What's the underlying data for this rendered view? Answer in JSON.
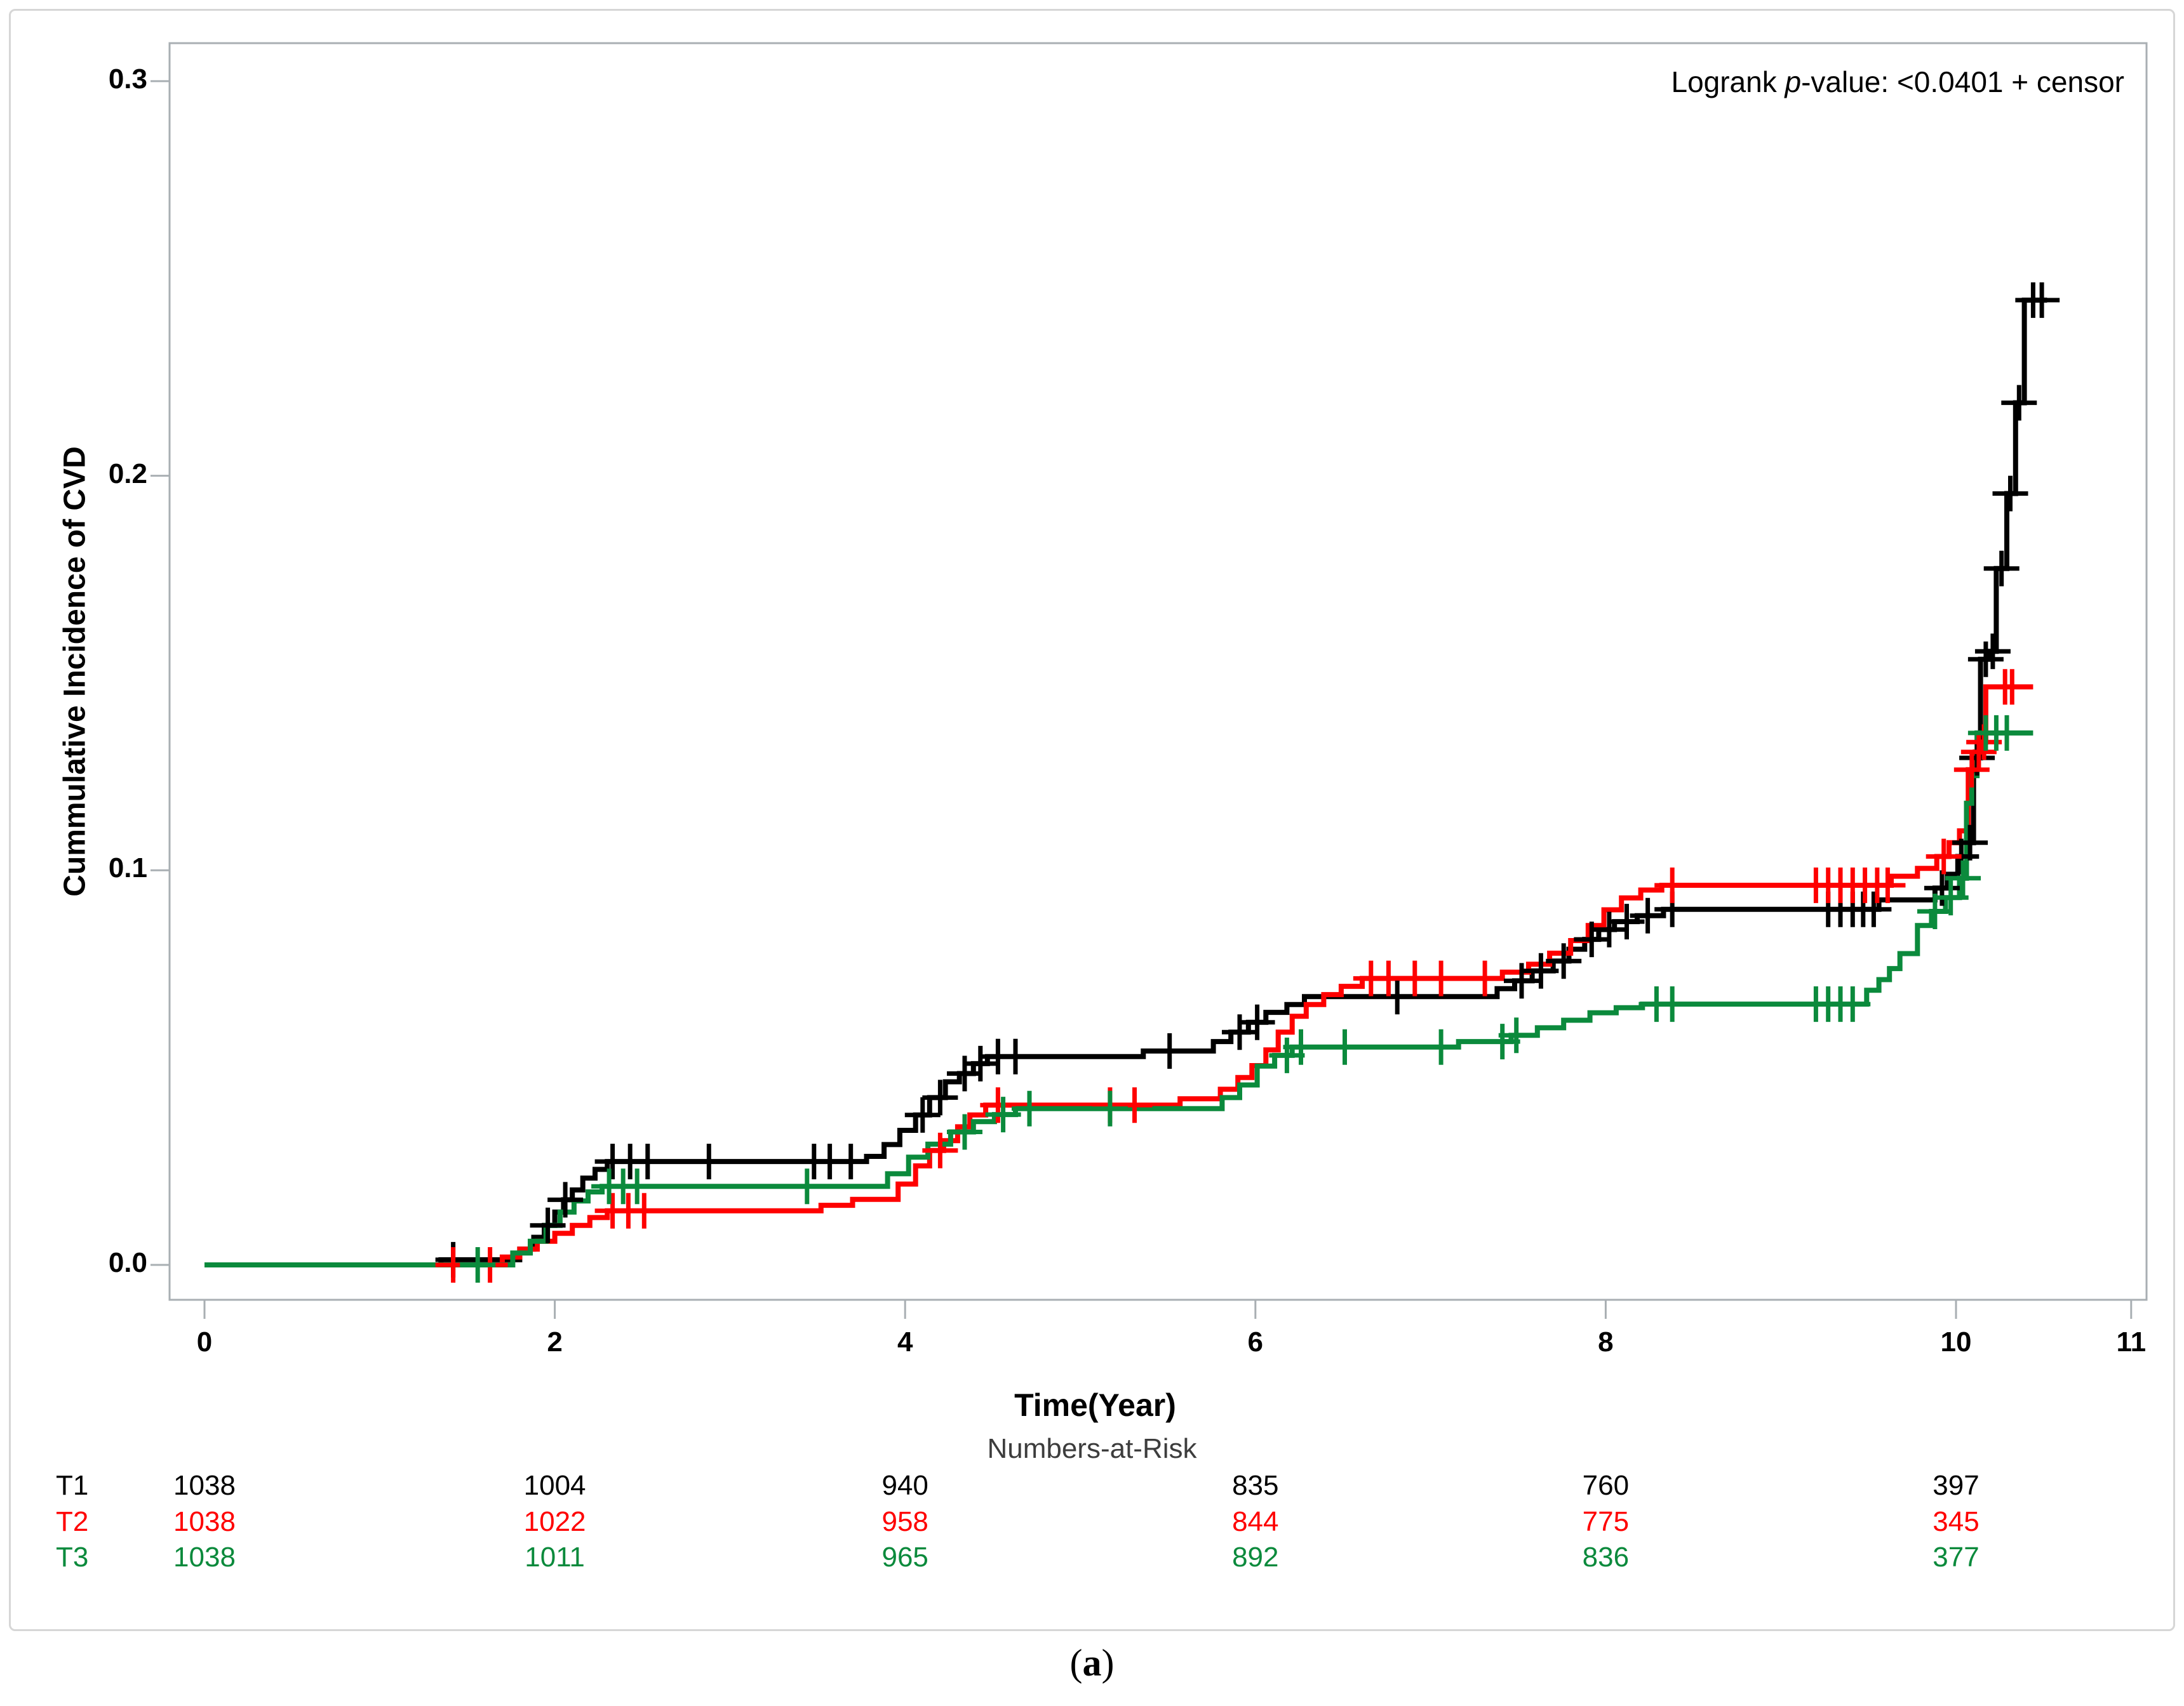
{
  "chart_data": {
    "type": "line",
    "subtype": "step-cumulative-incidence",
    "title": "",
    "annotation": {
      "prefix": "Logrank ",
      "italic": "p",
      "suffix": "-value: <0.0401 + censor"
    },
    "xlabel": "Time(Year)",
    "ylabel": "Cummulative Incidence of CVD",
    "xlim": [
      0,
      11.1
    ],
    "ylim": [
      0,
      0.305
    ],
    "grid": false,
    "legend_position": "none",
    "x_ticks": [
      {
        "value": 0,
        "label": "0"
      },
      {
        "value": 2,
        "label": "2"
      },
      {
        "value": 4,
        "label": "4"
      },
      {
        "value": 6,
        "label": "6"
      },
      {
        "value": 8,
        "label": "8"
      },
      {
        "value": 10,
        "label": "10"
      },
      {
        "value": 11,
        "label": "11"
      }
    ],
    "y_ticks": [
      {
        "value": 0.0,
        "label": "0.0"
      },
      {
        "value": 0.1,
        "label": "0.1"
      },
      {
        "value": 0.2,
        "label": "0.2"
      },
      {
        "value": 0.3,
        "label": "0.3"
      }
    ],
    "series": [
      {
        "name": "T1",
        "color": "#000000",
        "end": 10.52,
        "steps": [
          [
            0,
            0
          ],
          [
            1.35,
            0.0013
          ],
          [
            1.8,
            0.004
          ],
          [
            1.88,
            0.007
          ],
          [
            1.94,
            0.01
          ],
          [
            2.0,
            0.0134
          ],
          [
            2.05,
            0.0165
          ],
          [
            2.1,
            0.019
          ],
          [
            2.16,
            0.022
          ],
          [
            2.23,
            0.0242
          ],
          [
            2.3,
            0.0262
          ],
          [
            3.78,
            0.0275
          ],
          [
            3.88,
            0.0305
          ],
          [
            3.97,
            0.0341
          ],
          [
            4.06,
            0.038
          ],
          [
            4.14,
            0.0424
          ],
          [
            4.23,
            0.0464
          ],
          [
            4.31,
            0.0485
          ],
          [
            4.39,
            0.051
          ],
          [
            4.47,
            0.0528
          ],
          [
            5.36,
            0.0542
          ],
          [
            5.76,
            0.0566
          ],
          [
            5.86,
            0.059
          ],
          [
            5.96,
            0.0615
          ],
          [
            6.06,
            0.064
          ],
          [
            6.18,
            0.066
          ],
          [
            6.28,
            0.068
          ],
          [
            7.38,
            0.07
          ],
          [
            7.48,
            0.072
          ],
          [
            7.58,
            0.0745
          ],
          [
            7.7,
            0.077
          ],
          [
            7.79,
            0.08
          ],
          [
            7.88,
            0.0825
          ],
          [
            7.96,
            0.085
          ],
          [
            8.05,
            0.087
          ],
          [
            8.18,
            0.0885
          ],
          [
            8.33,
            0.0901
          ],
          [
            9.56,
            0.0925
          ],
          [
            9.88,
            0.0955
          ],
          [
            9.95,
            0.099
          ],
          [
            10.01,
            0.1035
          ],
          [
            10.06,
            0.107
          ],
          [
            10.1,
            0.1285
          ],
          [
            10.14,
            0.1535
          ],
          [
            10.19,
            0.1555
          ],
          [
            10.23,
            0.1765
          ],
          [
            10.29,
            0.1955
          ],
          [
            10.34,
            0.2185
          ],
          [
            10.39,
            0.2445
          ]
        ],
        "censor_times": [
          1.42,
          1.96,
          2.06,
          2.33,
          2.43,
          2.53,
          2.88,
          3.48,
          3.57,
          3.69,
          4.1,
          4.2,
          4.34,
          4.43,
          4.53,
          4.63,
          5.51,
          5.91,
          6.01,
          6.81,
          7.52,
          7.63,
          7.76,
          7.92,
          8.02,
          8.12,
          8.24,
          8.38,
          9.27,
          9.34,
          9.41,
          9.47,
          9.53,
          9.92,
          10.03,
          10.08,
          10.12,
          10.17,
          10.21,
          10.26,
          10.31,
          10.36,
          10.44,
          10.49
        ]
      },
      {
        "name": "T2",
        "color": "#fe0000",
        "end": 10.44,
        "steps": [
          [
            0,
            0
          ],
          [
            1.7,
            0.002
          ],
          [
            1.8,
            0.004
          ],
          [
            1.9,
            0.006
          ],
          [
            2.0,
            0.008
          ],
          [
            2.1,
            0.01
          ],
          [
            2.2,
            0.012
          ],
          [
            2.3,
            0.0137
          ],
          [
            3.52,
            0.0151
          ],
          [
            3.7,
            0.0166
          ],
          [
            3.96,
            0.0205
          ],
          [
            4.06,
            0.0251
          ],
          [
            4.14,
            0.029
          ],
          [
            4.22,
            0.0315
          ],
          [
            4.3,
            0.035
          ],
          [
            4.37,
            0.038
          ],
          [
            4.46,
            0.0405
          ],
          [
            5.57,
            0.0421
          ],
          [
            5.8,
            0.0445
          ],
          [
            5.9,
            0.0475
          ],
          [
            5.98,
            0.0505
          ],
          [
            6.06,
            0.0545
          ],
          [
            6.13,
            0.059
          ],
          [
            6.21,
            0.063
          ],
          [
            6.29,
            0.066
          ],
          [
            6.39,
            0.0685
          ],
          [
            6.49,
            0.0706
          ],
          [
            6.61,
            0.0726
          ],
          [
            7.41,
            0.0742
          ],
          [
            7.56,
            0.0762
          ],
          [
            7.68,
            0.079
          ],
          [
            7.8,
            0.0822
          ],
          [
            7.9,
            0.086
          ],
          [
            7.99,
            0.09
          ],
          [
            8.09,
            0.093
          ],
          [
            8.2,
            0.095
          ],
          [
            8.32,
            0.0962
          ],
          [
            9.63,
            0.0985
          ],
          [
            9.78,
            0.1005
          ],
          [
            9.89,
            0.1035
          ],
          [
            9.96,
            0.107
          ],
          [
            10.02,
            0.11
          ],
          [
            10.07,
            0.1255
          ],
          [
            10.11,
            0.13
          ],
          [
            10.14,
            0.1325
          ],
          [
            10.17,
            0.1465
          ]
        ],
        "censor_times": [
          1.42,
          1.63,
          2.33,
          2.42,
          2.51,
          4.2,
          4.53,
          5.17,
          5.31,
          6.66,
          6.76,
          6.91,
          7.06,
          7.31,
          8.38,
          9.2,
          9.27,
          9.34,
          9.41,
          9.48,
          9.55,
          9.61,
          9.93,
          10.09,
          10.13,
          10.16,
          10.28,
          10.32
        ]
      },
      {
        "name": "T3",
        "color": "#0b8a3c",
        "end": 10.44,
        "steps": [
          [
            0,
            0
          ],
          [
            1.76,
            0.003
          ],
          [
            1.86,
            0.006
          ],
          [
            1.95,
            0.01
          ],
          [
            2.03,
            0.0134
          ],
          [
            2.11,
            0.0162
          ],
          [
            2.19,
            0.0185
          ],
          [
            2.27,
            0.0199
          ],
          [
            3.9,
            0.0231
          ],
          [
            4.02,
            0.0273
          ],
          [
            4.13,
            0.0306
          ],
          [
            4.26,
            0.0337
          ],
          [
            4.39,
            0.0363
          ],
          [
            4.51,
            0.0381
          ],
          [
            4.63,
            0.0396
          ],
          [
            5.81,
            0.0424
          ],
          [
            5.91,
            0.0456
          ],
          [
            6.01,
            0.0504
          ],
          [
            6.11,
            0.0531
          ],
          [
            6.21,
            0.0552
          ],
          [
            7.16,
            0.0566
          ],
          [
            7.46,
            0.0582
          ],
          [
            7.61,
            0.0601
          ],
          [
            7.76,
            0.062
          ],
          [
            7.91,
            0.0639
          ],
          [
            8.06,
            0.0652
          ],
          [
            8.21,
            0.0661
          ],
          [
            9.49,
            0.0696
          ],
          [
            9.56,
            0.0723
          ],
          [
            9.62,
            0.0751
          ],
          [
            9.68,
            0.0789
          ],
          [
            9.78,
            0.086
          ],
          [
            9.86,
            0.0896
          ],
          [
            9.94,
            0.0931
          ],
          [
            10.02,
            0.098
          ],
          [
            10.06,
            0.117
          ],
          [
            10.09,
            0.124
          ],
          [
            10.12,
            0.1348
          ]
        ],
        "censor_times": [
          1.56,
          2.31,
          2.39,
          2.47,
          3.44,
          4.34,
          4.56,
          4.71,
          5.17,
          6.18,
          6.26,
          6.51,
          7.06,
          7.41,
          7.49,
          8.29,
          8.38,
          9.2,
          9.27,
          9.34,
          9.41,
          9.88,
          9.97,
          10.04,
          10.17,
          10.23,
          10.29
        ]
      }
    ],
    "risk_table": {
      "title": "Numbers-at-Risk",
      "time_points": [
        0,
        2,
        4,
        6,
        8,
        10
      ],
      "rows": [
        {
          "label": "T1",
          "color": "#000000",
          "values": [
            "1038",
            "1004",
            "940",
            "835",
            "760",
            "397"
          ]
        },
        {
          "label": "T2",
          "color": "#fe0000",
          "values": [
            "1038",
            "1022",
            "958",
            "844",
            "775",
            "345"
          ]
        },
        {
          "label": "T3",
          "color": "#0b8a3c",
          "values": [
            "1038",
            "1011",
            "965",
            "892",
            "836",
            "377"
          ]
        }
      ]
    },
    "caption": "(a)",
    "caption_parts": {
      "open": "(",
      "letter": "a",
      "close": ")"
    },
    "colors": {
      "axis_line": "#a9afb3",
      "border": "#d6d6d6",
      "risk_title_text": "#3d3d3d"
    }
  }
}
